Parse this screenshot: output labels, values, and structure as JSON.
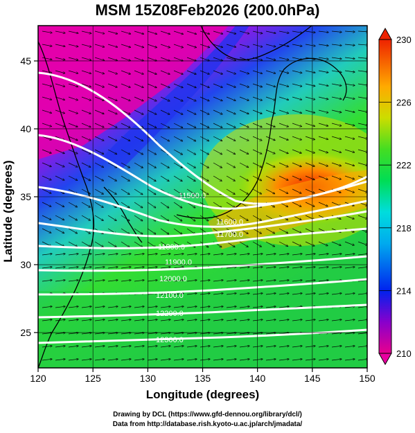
{
  "title": "MSM 15Z08Feb2026 (200.0hPa)",
  "xlabel": "Longitude (degrees)",
  "ylabel": "Latitude  (degrees)",
  "footer_line1": "Drawing by DCL (https://www.gfd-dennou.org/library/dcl/)",
  "footer_line2": "Data from http://database.rish.kyoto-u.ac.jp/arch/jmadata/",
  "map": {
    "lon_range": [
      120,
      150
    ],
    "lat_range": [
      22.4,
      47.6
    ],
    "lon_ticks": [
      120,
      125,
      130,
      135,
      140,
      145,
      150
    ],
    "lat_ticks": [
      25,
      30,
      35,
      40,
      45
    ]
  },
  "colorbar": {
    "min": 210,
    "max": 230,
    "tick_labels": [
      "230",
      "226",
      "222",
      "218",
      "214",
      "210"
    ],
    "tick_values": [
      230,
      226,
      222,
      218,
      214,
      210
    ],
    "colors": [
      "#e8008e",
      "#8800cc",
      "#0022ee",
      "#00aaee",
      "#00dddd",
      "#00dd55",
      "#44dd22",
      "#aadd00",
      "#ffcc00",
      "#ff7700",
      "#ee2200"
    ]
  },
  "contour_labels": [
    "11500.0",
    "11600.0",
    "11700.0",
    "11800.0",
    "11900.0",
    "12000.0",
    "12100.0",
    "12200.0",
    "12300.0"
  ]
}
